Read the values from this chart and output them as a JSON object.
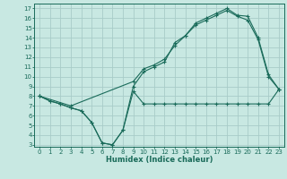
{
  "xlabel": "Humidex (Indice chaleur)",
  "bg_color": "#c8e8e2",
  "grid_color": "#a8ccc8",
  "line_color": "#1a6b5a",
  "xlim": [
    -0.5,
    23.5
  ],
  "ylim": [
    2.8,
    17.5
  ],
  "xticks": [
    0,
    1,
    2,
    3,
    4,
    5,
    6,
    7,
    8,
    9,
    10,
    11,
    12,
    13,
    14,
    15,
    16,
    17,
    18,
    19,
    20,
    21,
    22,
    23
  ],
  "yticks": [
    3,
    4,
    5,
    6,
    7,
    8,
    9,
    10,
    11,
    12,
    13,
    14,
    15,
    16,
    17
  ],
  "line1_x": [
    0,
    1,
    2,
    3,
    4,
    5,
    6,
    7,
    8,
    9,
    10,
    11,
    12,
    13,
    14,
    15,
    16,
    17,
    18,
    19,
    20,
    21,
    22,
    23
  ],
  "line1_y": [
    8.0,
    7.5,
    7.2,
    6.8,
    6.5,
    5.3,
    3.2,
    3.0,
    4.5,
    8.5,
    7.2,
    7.2,
    7.2,
    7.2,
    7.2,
    7.2,
    7.2,
    7.2,
    7.2,
    7.2,
    7.2,
    7.2,
    7.2,
    8.7
  ],
  "line2_x": [
    0,
    1,
    2,
    3,
    4,
    5,
    6,
    7,
    8,
    9,
    10,
    11,
    12,
    13,
    14,
    15,
    16,
    17,
    18,
    19,
    20,
    21,
    22,
    23
  ],
  "line2_y": [
    8.0,
    7.5,
    7.2,
    6.8,
    6.5,
    5.3,
    3.2,
    3.0,
    4.5,
    9.0,
    10.5,
    11.0,
    11.5,
    13.5,
    14.2,
    15.3,
    15.8,
    16.3,
    16.8,
    16.2,
    15.8,
    13.8,
    10.0,
    8.7
  ],
  "line3_x": [
    0,
    3,
    9,
    10,
    11,
    12,
    13,
    14,
    15,
    16,
    17,
    18,
    19,
    20,
    21,
    22,
    23
  ],
  "line3_y": [
    8.0,
    7.0,
    9.5,
    10.8,
    11.2,
    11.8,
    13.2,
    14.2,
    15.5,
    16.0,
    16.5,
    17.0,
    16.3,
    16.2,
    14.0,
    10.2,
    8.7
  ]
}
